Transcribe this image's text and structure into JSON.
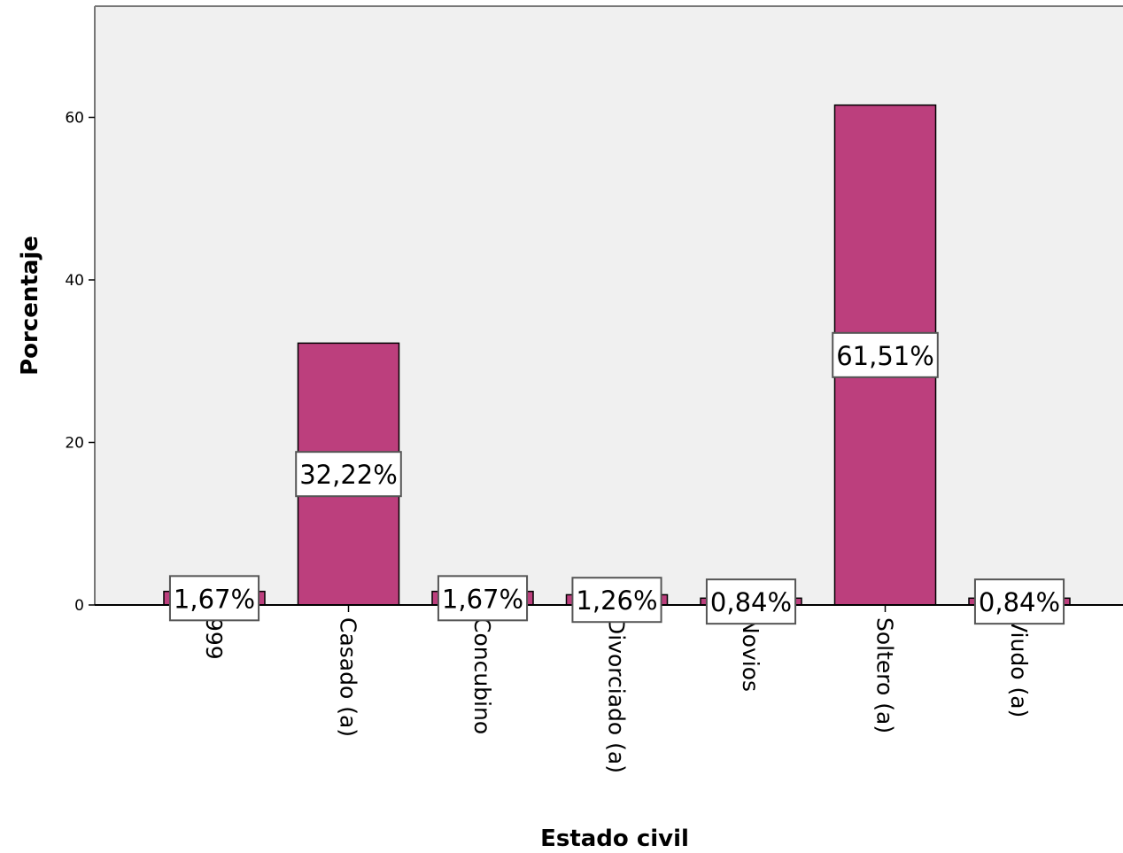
{
  "chart_data": {
    "type": "bar",
    "title": "",
    "xlabel": "Estado civil",
    "ylabel": "Porcentaje",
    "categories": [
      "999",
      "Casado (a)",
      "Concubino",
      "Divorciado (a)",
      "Novios",
      "Soltero (a)",
      "Viudo (a)"
    ],
    "values": [
      1.67,
      32.22,
      1.67,
      1.26,
      0.84,
      61.51,
      0.84
    ],
    "data_labels": [
      "1,67%",
      "32,22%",
      "1,67%",
      "1,26%",
      "0,84%",
      "61,51%",
      "0,84%"
    ],
    "ylim": [
      0,
      74
    ],
    "yticks": [
      0,
      20,
      40,
      60
    ],
    "ytick_labels": [
      "0",
      "20",
      "40",
      "60"
    ],
    "grid": false,
    "legend": "none",
    "colors": {
      "bar_fill": "#bc3f7d",
      "bar_stroke": "#000000",
      "plot_background": "#f0f0f0",
      "plot_border": "#777777",
      "label_box_fill": "#ffffff",
      "label_box_stroke": "#555555"
    }
  }
}
